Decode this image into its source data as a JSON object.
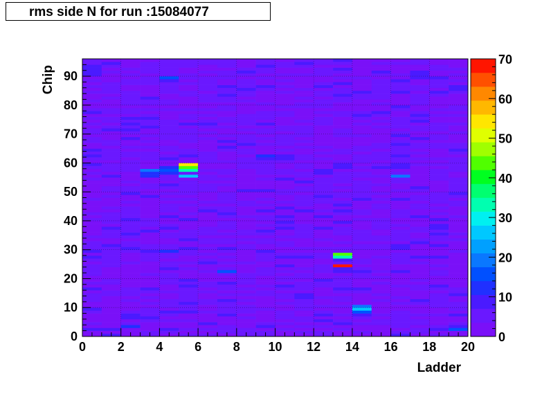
{
  "chart_data": {
    "type": "heatmap",
    "title": "rms side N for run :15084077",
    "xlabel": "Ladder",
    "ylabel": "Chip",
    "xlim": [
      0,
      20
    ],
    "ylim": [
      0,
      96
    ],
    "x_ticks": [
      0,
      2,
      4,
      6,
      8,
      10,
      12,
      14,
      16,
      18,
      20
    ],
    "y_ticks": [
      0,
      10,
      20,
      30,
      40,
      50,
      60,
      70,
      80,
      90
    ],
    "z_range": [
      0,
      70
    ],
    "z_ticks": [
      0,
      10,
      20,
      30,
      40,
      50,
      60,
      70
    ],
    "nx": 20,
    "ny": 96,
    "grid": true,
    "baseline_value": 5,
    "palette": [
      "#7a10f8",
      "#6a18ff",
      "#4a1aff",
      "#2030ff",
      "#0050ff",
      "#0a78ff",
      "#00a0ff",
      "#00c8ff",
      "#00f0f0",
      "#00ffb0",
      "#00ff70",
      "#00ff20",
      "#50ff00",
      "#a0ff00",
      "#e0ff00",
      "#ffe600",
      "#ffb800",
      "#ff8800",
      "#ff5000",
      "#ff1500"
    ],
    "cells": [
      {
        "ladder": 3,
        "chip": 57,
        "value": 20
      },
      {
        "ladder": 3,
        "chip": 56,
        "value": 12
      },
      {
        "ladder": 3,
        "chip": 55,
        "value": 11
      },
      {
        "ladder": 4,
        "chip": 58,
        "value": 13
      },
      {
        "ladder": 4,
        "chip": 57,
        "value": 14
      },
      {
        "ladder": 4,
        "chip": 56,
        "value": 12
      },
      {
        "ladder": 4,
        "chip": 89,
        "value": 16
      },
      {
        "ladder": 4,
        "chip": 88,
        "value": 9
      },
      {
        "ladder": 5,
        "chip": 59,
        "value": 55
      },
      {
        "ladder": 5,
        "chip": 58,
        "value": 45
      },
      {
        "ladder": 5,
        "chip": 57,
        "value": 32
      },
      {
        "ladder": 5,
        "chip": 56,
        "value": 6
      },
      {
        "ladder": 5,
        "chip": 55,
        "value": 26
      },
      {
        "ladder": 13,
        "chip": 28,
        "value": 45
      },
      {
        "ladder": 13,
        "chip": 27,
        "value": 34
      },
      {
        "ladder": 13,
        "chip": 26,
        "value": 8
      },
      {
        "ladder": 13,
        "chip": 25,
        "value": 5
      },
      {
        "ladder": 13,
        "chip": 24,
        "value": 68
      },
      {
        "ladder": 14,
        "chip": 10,
        "value": 19
      },
      {
        "ladder": 14,
        "chip": 9,
        "value": 25
      },
      {
        "ladder": 14,
        "chip": 8,
        "value": 14
      },
      {
        "ladder": 16,
        "chip": 55,
        "value": 20
      },
      {
        "ladder": 7,
        "chip": 22,
        "value": 14
      },
      {
        "ladder": 2,
        "chip": 3,
        "value": 13
      },
      {
        "ladder": 19,
        "chip": 2,
        "value": 16
      },
      {
        "ladder": 4,
        "chip": 29,
        "value": 11
      },
      {
        "ladder": 4,
        "chip": 23,
        "value": 10
      },
      {
        "ladder": 3,
        "chip": 16,
        "value": 10
      },
      {
        "ladder": 9,
        "chip": 62,
        "value": 11
      },
      {
        "ladder": 9,
        "chip": 61,
        "value": 10
      },
      {
        "ladder": 13,
        "chip": 59,
        "value": 10
      },
      {
        "ladder": 16,
        "chip": 30,
        "value": 10
      },
      {
        "ladder": 1,
        "chip": 55,
        "value": 8
      },
      {
        "ladder": 11,
        "chip": 53,
        "value": 8
      }
    ]
  }
}
